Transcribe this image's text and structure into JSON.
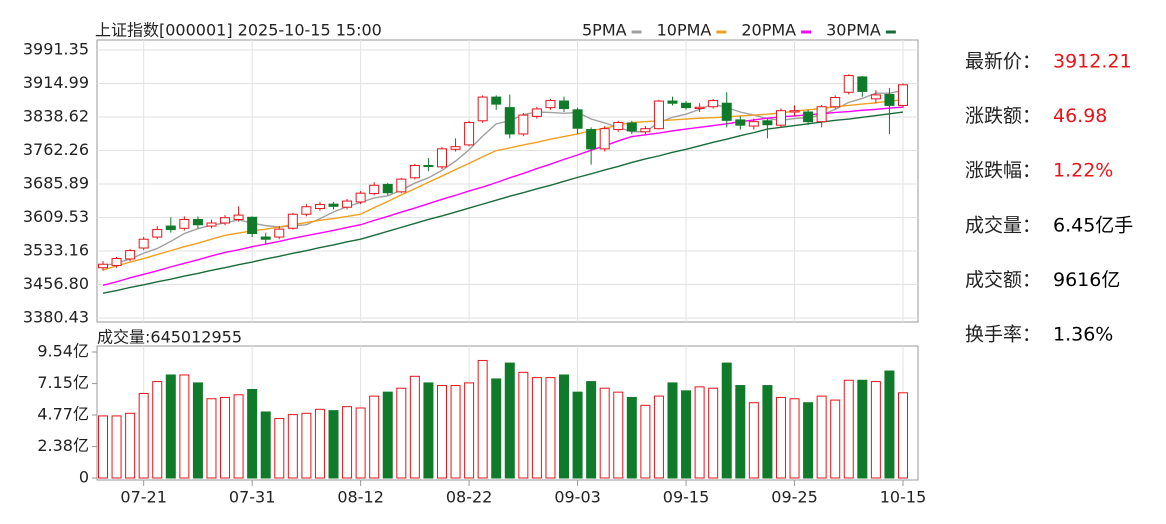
{
  "chart_data": [
    {
      "type": "candlestick",
      "title": "上证指数[000001]  2025-10-15  15:00",
      "up_color": "#e8141a",
      "down_color": "#0f7a2a",
      "grid": true,
      "ylim": [
        3380.43,
        3991.35
      ],
      "yticks": [
        3380.43,
        {
          "value": 3456.8,
          "label": "3456.80"
        },
        3533.16,
        3609.53,
        3685.89,
        3762.26,
        3838.62,
        3914.99,
        3991.35
      ],
      "open": [
        3495,
        3500,
        3515,
        3540,
        3565,
        3590,
        3585,
        3605,
        3590,
        3597,
        3605,
        3610,
        3565,
        3565,
        3585,
        3617,
        3630,
        3640,
        3633,
        3645,
        3664,
        3685,
        3668,
        3700,
        3728,
        3725,
        3765,
        3775,
        3830,
        3884,
        3860,
        3800,
        3840,
        3860,
        3875,
        3855,
        3810,
        3766,
        3810,
        3825,
        3805,
        3812,
        3875,
        3870,
        3858,
        3862,
        3870,
        3832,
        3818,
        3830,
        3820,
        3850,
        3850,
        3828,
        3862,
        3895,
        3930,
        3880,
        3890,
        3865
      ],
      "high": [
        3510,
        3520,
        3538,
        3565,
        3590,
        3610,
        3612,
        3612,
        3605,
        3615,
        3635,
        3612,
        3575,
        3590,
        3620,
        3640,
        3645,
        3645,
        3652,
        3670,
        3690,
        3688,
        3700,
        3732,
        3745,
        3770,
        3790,
        3830,
        3888,
        3888,
        3890,
        3848,
        3862,
        3880,
        3885,
        3860,
        3815,
        3818,
        3830,
        3830,
        3818,
        3878,
        3885,
        3875,
        3870,
        3880,
        3895,
        3840,
        3835,
        3835,
        3858,
        3865,
        3855,
        3866,
        3888,
        3936,
        3932,
        3900,
        3905,
        3915
      ],
      "low": [
        3488,
        3495,
        3510,
        3535,
        3560,
        3575,
        3580,
        3585,
        3585,
        3592,
        3600,
        3565,
        3550,
        3560,
        3582,
        3612,
        3625,
        3628,
        3628,
        3640,
        3660,
        3660,
        3665,
        3696,
        3715,
        3720,
        3760,
        3772,
        3825,
        3855,
        3790,
        3795,
        3835,
        3855,
        3850,
        3800,
        3730,
        3760,
        3805,
        3800,
        3800,
        3810,
        3865,
        3855,
        3850,
        3858,
        3815,
        3810,
        3810,
        3790,
        3815,
        3840,
        3820,
        3815,
        3858,
        3890,
        3885,
        3870,
        3800,
        3860
      ],
      "close": [
        3503,
        3516,
        3534,
        3560,
        3582,
        3582,
        3605,
        3593,
        3597,
        3609,
        3615,
        3573,
        3560,
        3583,
        3617,
        3634,
        3639,
        3635,
        3647,
        3665,
        3683,
        3666,
        3697,
        3728,
        3727,
        3766,
        3771,
        3826,
        3884,
        3868,
        3800,
        3843,
        3857,
        3876,
        3858,
        3813,
        3766,
        3812,
        3826,
        3807,
        3812,
        3875,
        3870,
        3860,
        3861,
        3876,
        3831,
        3820,
        3828,
        3821,
        3853,
        3853,
        3828,
        3862,
        3883,
        3933,
        3897,
        3889,
        3865,
        3912
      ],
      "series": [
        {
          "name": "5PMA",
          "color": "#a0a0a0",
          "values": [
            3500,
            3505,
            3515,
            3528,
            3539,
            3555,
            3573,
            3584,
            3592,
            3597,
            3604,
            3597,
            3591,
            3588,
            3590,
            3593,
            3607,
            3622,
            3634,
            3644,
            3654,
            3659,
            3672,
            3688,
            3700,
            3717,
            3738,
            3764,
            3795,
            3823,
            3830,
            3844,
            3850,
            3849,
            3847,
            3849,
            3834,
            3825,
            3815,
            3805,
            3805,
            3826,
            3838,
            3845,
            3856,
            3868,
            3860,
            3850,
            3843,
            3835,
            3831,
            3835,
            3837,
            3843,
            3856,
            3872,
            3881,
            3893,
            3893,
            3899
          ]
        },
        {
          "name": "10PMA",
          "color": "#f0a020",
          "values": [
            3490,
            3499,
            3508,
            3516,
            3525,
            3534,
            3543,
            3551,
            3560,
            3569,
            3574,
            3579,
            3583,
            3588,
            3593,
            3598,
            3603,
            3607,
            3612,
            3617,
            3632,
            3646,
            3661,
            3675,
            3690,
            3704,
            3719,
            3733,
            3748,
            3762,
            3768,
            3775,
            3781,
            3788,
            3794,
            3800,
            3807,
            3813,
            3820,
            3826,
            3828,
            3830,
            3832,
            3834,
            3836,
            3837,
            3839,
            3841,
            3843,
            3845,
            3848,
            3852,
            3855,
            3858,
            3862,
            3865,
            3868,
            3871,
            3875,
            3878
          ]
        },
        {
          "name": "20PMA",
          "color": "#ff00ff",
          "values": [
            3455,
            3463,
            3472,
            3480,
            3488,
            3497,
            3505,
            3513,
            3522,
            3530,
            3536,
            3543,
            3549,
            3555,
            3562,
            3568,
            3574,
            3580,
            3587,
            3593,
            3603,
            3612,
            3622,
            3631,
            3641,
            3651,
            3660,
            3670,
            3679,
            3689,
            3700,
            3710,
            3721,
            3731,
            3742,
            3752,
            3763,
            3773,
            3784,
            3794,
            3798,
            3802,
            3807,
            3811,
            3815,
            3819,
            3823,
            3828,
            3832,
            3836,
            3839,
            3841,
            3844,
            3846,
            3849,
            3851,
            3854,
            3856,
            3859,
            3861
          ]
        },
        {
          "name": "30PMA",
          "color": "#1a6b3a",
          "values": [
            3437,
            3443,
            3450,
            3456,
            3463,
            3469,
            3476,
            3482,
            3489,
            3495,
            3502,
            3508,
            3515,
            3521,
            3528,
            3534,
            3541,
            3547,
            3554,
            3560,
            3569,
            3578,
            3587,
            3596,
            3605,
            3613,
            3622,
            3631,
            3640,
            3649,
            3658,
            3666,
            3675,
            3683,
            3692,
            3701,
            3709,
            3718,
            3726,
            3735,
            3743,
            3750,
            3758,
            3765,
            3773,
            3781,
            3788,
            3796,
            3803,
            3811,
            3815,
            3819,
            3823,
            3827,
            3831,
            3834,
            3838,
            3842,
            3846,
            3850
          ]
        }
      ]
    },
    {
      "type": "bar",
      "title": "成交量:645012955",
      "ylim": [
        0,
        9.54
      ],
      "yticks": [
        0,
        {
          "value": 2.38,
          "label": "2.38亿"
        },
        {
          "value": 4.77,
          "label": "4.77亿"
        },
        {
          "value": 7.15,
          "label": "7.15亿"
        },
        {
          "value": 9.54,
          "label": "9.54亿"
        }
      ],
      "categories": [
        null,
        null,
        null,
        "07-21",
        null,
        null,
        null,
        null,
        null,
        null,
        null,
        "07-31",
        null,
        null,
        null,
        null,
        null,
        null,
        null,
        "08-12",
        null,
        null,
        null,
        null,
        null,
        null,
        null,
        "08-22",
        null,
        null,
        null,
        null,
        null,
        null,
        null,
        "09-03",
        null,
        null,
        null,
        null,
        null,
        null,
        null,
        "09-15",
        null,
        null,
        null,
        null,
        null,
        null,
        null,
        "09-25",
        null,
        null,
        null,
        null,
        null,
        null,
        null,
        "10-15"
      ],
      "values": [
        4.7,
        4.7,
        4.9,
        6.4,
        7.3,
        7.8,
        7.8,
        7.2,
        6.0,
        6.1,
        6.3,
        6.7,
        5.0,
        4.5,
        4.8,
        4.9,
        5.2,
        5.1,
        5.4,
        5.3,
        6.2,
        6.5,
        6.8,
        7.7,
        7.2,
        7.0,
        7.0,
        7.2,
        8.9,
        7.5,
        8.7,
        8.0,
        7.6,
        7.6,
        7.8,
        6.5,
        7.3,
        6.8,
        6.5,
        6.1,
        5.5,
        6.2,
        7.2,
        6.6,
        6.9,
        6.8,
        8.7,
        7.0,
        5.7,
        7.0,
        6.1,
        6.0,
        5.7,
        6.2,
        5.9,
        7.4,
        7.4,
        7.3,
        8.1,
        6.45
      ]
    }
  ],
  "quote": {
    "rows": [
      {
        "label": "最新价：",
        "value": "3912.21",
        "color": "#e8141a"
      },
      {
        "label": "涨跌额：",
        "value": "46.98",
        "color": "#e8141a"
      },
      {
        "label": "涨跌幅：",
        "value": "1.22%",
        "color": "#e8141a"
      },
      {
        "label": "成交量：",
        "value": "6.45亿手",
        "color": "#000000"
      },
      {
        "label": "成交额：",
        "value": "9616亿",
        "color": "#000000"
      },
      {
        "label": "换手率：",
        "value": "1.36%",
        "color": "#000000"
      }
    ]
  }
}
